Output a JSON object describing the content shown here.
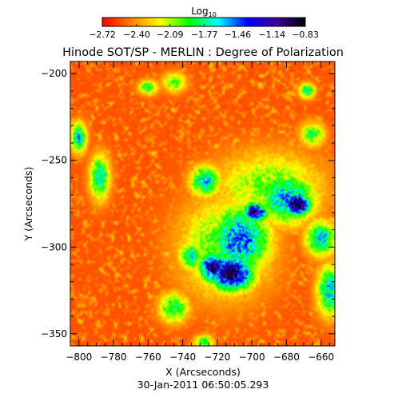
{
  "chart_data": {
    "type": "heatmap",
    "title": "Hinode SOT/SP - MERLIN : Degree of Polarization",
    "xlabel": "X (Arcseconds)",
    "ylabel": "Y (Arcseconds)",
    "xlim": [
      -805,
      -652
    ],
    "ylim": [
      -357,
      -193
    ],
    "x_ticks": [
      -800,
      -780,
      -760,
      -740,
      -720,
      -700,
      -680,
      -660
    ],
    "x_tick_labels": [
      "−800",
      "−780",
      "−760",
      "−740",
      "−720",
      "−700",
      "−680",
      "−660"
    ],
    "y_ticks": [
      -200,
      -250,
      -300,
      -350
    ],
    "y_tick_labels": [
      "−200",
      "−250",
      "−300",
      "−350"
    ],
    "timestamp": "30-Jan-2011 06:50:05.293",
    "colorbar": {
      "label_base": "Log",
      "label_sub": "10",
      "range": [
        -2.72,
        -0.83
      ],
      "tick_values": [
        -2.72,
        -2.4,
        -2.09,
        -1.77,
        -1.46,
        -1.14,
        -0.83
      ],
      "tick_labels": [
        "−2.72",
        "−2.40",
        "−2.09",
        "−1.77",
        "−1.46",
        "−1.14",
        "−0.83"
      ],
      "colors": [
        "#ff0000",
        "#ff8000",
        "#ffff00",
        "#00ff00",
        "#00ffff",
        "#0000ff",
        "#4000a0",
        "#000000"
      ]
    },
    "background_value": -2.55,
    "noise_amplitude": 0.32,
    "features": [
      {
        "x": -712,
        "y": -315,
        "sx": 9,
        "sy": 7,
        "peak": -0.95
      },
      {
        "x": -722,
        "y": -312,
        "sx": 6,
        "sy": 6,
        "peak": -1.05
      },
      {
        "x": -707,
        "y": -296,
        "sx": 12,
        "sy": 14,
        "peak": -1.45
      },
      {
        "x": -698,
        "y": -280,
        "sx": 5,
        "sy": 4,
        "peak": -1.05
      },
      {
        "x": -715,
        "y": -300,
        "sx": 18,
        "sy": 20,
        "peak": -1.9
      },
      {
        "x": -674,
        "y": -275,
        "sx": 6,
        "sy": 5,
        "peak": -0.95
      },
      {
        "x": -680,
        "y": -272,
        "sx": 12,
        "sy": 10,
        "peak": -1.55
      },
      {
        "x": -690,
        "y": -265,
        "sx": 22,
        "sy": 14,
        "peak": -2.0
      },
      {
        "x": -727,
        "y": -262,
        "sx": 6,
        "sy": 6,
        "peak": -1.6
      },
      {
        "x": -660,
        "y": -295,
        "sx": 6,
        "sy": 7,
        "peak": -1.6
      },
      {
        "x": -665,
        "y": -235,
        "sx": 5,
        "sy": 5,
        "peak": -1.9
      },
      {
        "x": -668,
        "y": -210,
        "sx": 3,
        "sy": 3,
        "peak": -1.7
      },
      {
        "x": -760,
        "y": -208,
        "sx": 4,
        "sy": 3,
        "peak": -1.9
      },
      {
        "x": -745,
        "y": -205,
        "sx": 5,
        "sy": 4,
        "peak": -2.0
      },
      {
        "x": -800,
        "y": -237,
        "sx": 3,
        "sy": 6,
        "peak": -1.6
      },
      {
        "x": -788,
        "y": -260,
        "sx": 4,
        "sy": 9,
        "peak": -1.7
      },
      {
        "x": -745,
        "y": -335,
        "sx": 6,
        "sy": 6,
        "peak": -1.8
      },
      {
        "x": -735,
        "y": -305,
        "sx": 5,
        "sy": 6,
        "peak": -1.7
      },
      {
        "x": -655,
        "y": -325,
        "sx": 5,
        "sy": 10,
        "peak": -1.6
      },
      {
        "x": -728,
        "y": -355,
        "sx": 4,
        "sy": 3,
        "peak": -1.9
      }
    ]
  }
}
